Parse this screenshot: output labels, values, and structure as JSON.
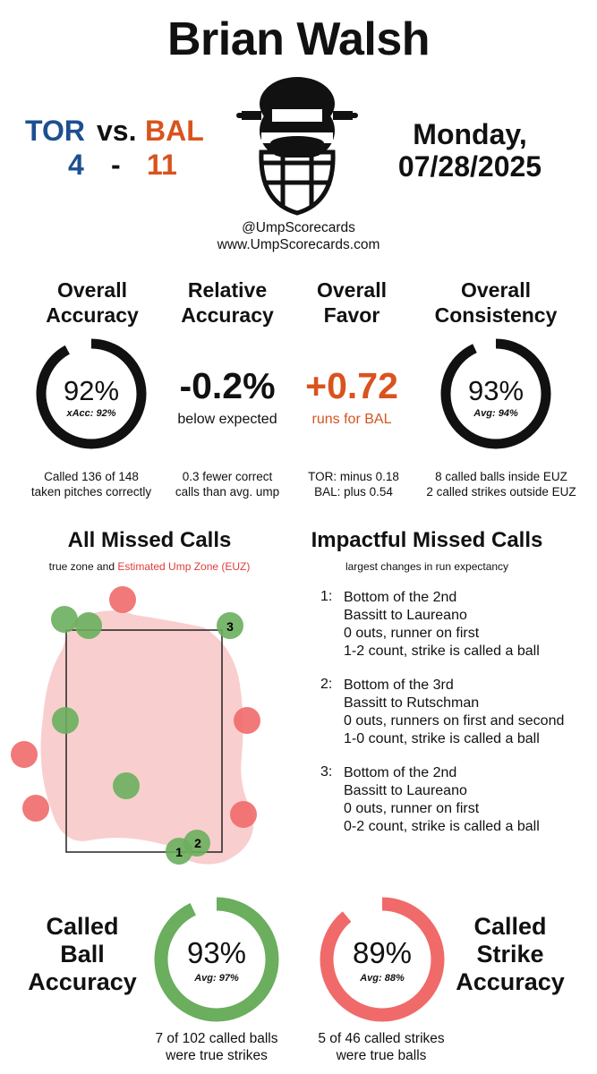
{
  "umpire": "Brian Walsh",
  "game": {
    "away_team": "TOR",
    "vs": "vs.",
    "home_team": "BAL",
    "away_score": "4",
    "dash": "-",
    "home_score": "11",
    "day": "Monday,",
    "date": "07/28/2025"
  },
  "colors": {
    "tor": "#1d4f91",
    "bal": "#d9531e",
    "ball_green": "#6aae5e",
    "strike_red": "#f06a6a",
    "euz_pink": "#f7c7c5"
  },
  "credits": {
    "handle": "@UmpScorecards",
    "site": "www.UmpScorecards.com"
  },
  "icon": "umpire-mask-icon",
  "stats": {
    "overall_accuracy": {
      "title1": "Overall",
      "title2": "Accuracy",
      "value": "92%",
      "sub": "xAcc: 92%",
      "fraction": 0.92,
      "foot1": "Called 136 of 148",
      "foot2": "taken pitches correctly"
    },
    "relative_accuracy": {
      "title1": "Relative",
      "title2": "Accuracy",
      "value": "-0.2%",
      "sub": "below expected",
      "foot1": "0.3 fewer correct",
      "foot2": "calls than avg. ump"
    },
    "overall_favor": {
      "title1": "Overall",
      "title2": "Favor",
      "value": "+0.72",
      "sub": "runs for BAL",
      "foot1": "TOR: minus 0.18",
      "foot2": "BAL: plus 0.54"
    },
    "overall_consistency": {
      "title1": "Overall",
      "title2": "Consistency",
      "value": "93%",
      "sub": "Avg: 94%",
      "fraction": 0.93,
      "foot1": "8 called balls inside EUZ",
      "foot2": "2 called strikes outside EUZ"
    }
  },
  "missed": {
    "title": "All Missed Calls",
    "sub_prefix": "true zone and",
    "sub_euz": "Estimated Ump Zone (EUZ)"
  },
  "impactful": {
    "title": "Impactful Missed Calls",
    "sub": "largest changes in run expectancy",
    "items": [
      {
        "num": "1:",
        "l1": "Bottom of the 2nd",
        "l2": "Bassitt to Laureano",
        "l3": "0 outs, runner on first",
        "l4": "1-2 count, strike is called a ball"
      },
      {
        "num": "2:",
        "l1": "Bottom of the 3rd",
        "l2": "Bassitt to Rutschman",
        "l3": "0 outs, runners on first and second",
        "l4": "1-0 count, strike is called a ball"
      },
      {
        "num": "3:",
        "l1": "Bottom of the 2nd",
        "l2": "Bassitt to Laureano",
        "l3": "0 outs, runner on first",
        "l4": "0-2 count, strike is called a ball"
      }
    ]
  },
  "called_ball": {
    "l1": "Called",
    "l2": "Ball",
    "l3": "Accuracy",
    "value": "93%",
    "avg": "Avg: 97%",
    "fraction": 0.93,
    "foot1": "7 of 102 called balls",
    "foot2": "were true strikes"
  },
  "called_strike": {
    "l1": "Called",
    "l2": "Strike",
    "l3": "Accuracy",
    "value": "89%",
    "avg": "Avg: 88%",
    "fraction": 0.89,
    "foot1": "5 of 46 called strikes",
    "foot2": "were true balls"
  },
  "pitch_labels": [
    "1",
    "2",
    "3"
  ]
}
